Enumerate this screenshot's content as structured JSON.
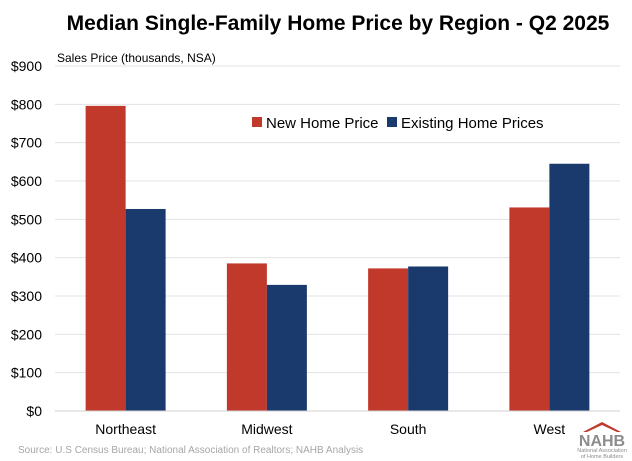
{
  "chart_data": {
    "type": "bar",
    "title": "Median Single-Family Home Price by Region - Q2 2025",
    "ylabel": "Sales Price (thousands, NSA)",
    "xlabel": "",
    "categories": [
      "Northeast",
      "Midwest",
      "South",
      "West"
    ],
    "series": [
      {
        "name": "New Home Price",
        "color": "#c0392b",
        "values": [
          796,
          385,
          372,
          531
        ]
      },
      {
        "name": "Existing Home Prices",
        "color": "#1a3a6e",
        "values": [
          527,
          329,
          377,
          645
        ]
      }
    ],
    "ylim": [
      0,
      900
    ],
    "yticks": [
      0,
      100,
      200,
      300,
      400,
      500,
      600,
      700,
      800,
      900
    ],
    "ytick_labels": [
      "$0",
      "$100",
      "$200",
      "$300",
      "$400",
      "$500",
      "$600",
      "$700",
      "$800",
      "$900"
    ],
    "grid": true,
    "legend_position": "top-right"
  },
  "footer": {
    "source": "Source: U.S Census Bureau; National Association of Realtors; NAHB Analysis",
    "logo_text": "NAHB",
    "logo_subtext_line1": "National Association",
    "logo_subtext_line2": "of Home Builders",
    "logo_color": "#8c8c8c",
    "logo_roof_color": "#c0392b"
  }
}
